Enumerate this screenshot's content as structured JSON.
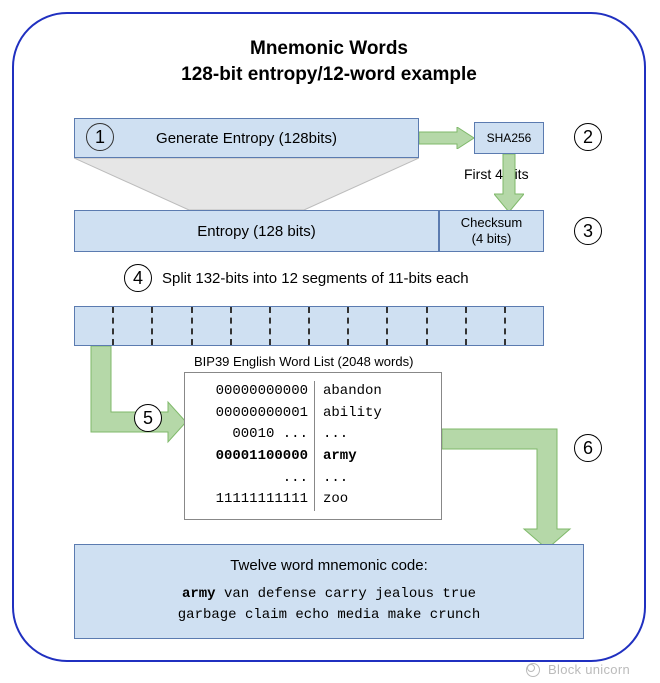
{
  "title_line1": "Mnemonic Words",
  "title_line2": "128-bit entropy/12-word example",
  "step1_box": "Generate Entropy (128bits)",
  "sha_box": "SHA256",
  "first4_label": "First 4 bits",
  "entropy_box": "Entropy (128 bits)",
  "checksum_box": "Checksum\n(4 bits)",
  "step4_text": "Split 132-bits into 12 segments of 11-bits each",
  "wordlist_title": "BIP39 English Word List (2048 words)",
  "wordlist_rows": [
    {
      "l": "00000000000",
      "r": "abandon",
      "bold": false
    },
    {
      "l": "00000000001",
      "r": "ability",
      "bold": false
    },
    {
      "l": "00010 ...",
      "r": "...",
      "bold": false
    },
    {
      "l": "00001100000",
      "r": "army",
      "bold": true
    },
    {
      "l": "...",
      "r": "...",
      "bold": false
    },
    {
      "l": "11111111111",
      "r": "zoo",
      "bold": false
    }
  ],
  "result_title": "Twelve word mnemonic code:",
  "result_line1": "army van defense carry jealous true",
  "result_line2": "garbage claim echo media make crunch",
  "watermark": "Block unicorn",
  "colors": {
    "frame_border": "#2030c0",
    "box_fill": "#cfe0f2",
    "box_border": "#5b7bb0",
    "arrow_fill": "#b5d8a8",
    "arrow_stroke": "#7fb96a",
    "funnel_fill": "#e6e6e6",
    "funnel_stroke": "#bcbcbc"
  },
  "steps": [
    "1",
    "2",
    "3",
    "4",
    "5",
    "6"
  ]
}
